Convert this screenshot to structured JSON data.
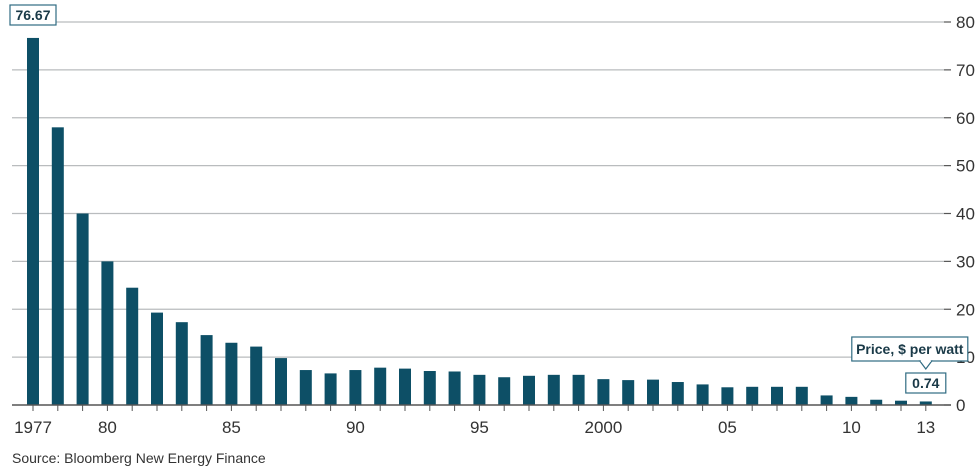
{
  "chart_data": {
    "type": "bar",
    "title": "",
    "x": [
      1977,
      1978,
      1979,
      1980,
      1981,
      1982,
      1983,
      1984,
      1985,
      1986,
      1987,
      1988,
      1989,
      1990,
      1991,
      1992,
      1993,
      1994,
      1995,
      1996,
      1997,
      1998,
      1999,
      2000,
      2001,
      2002,
      2003,
      2004,
      2005,
      2006,
      2007,
      2008,
      2009,
      2010,
      2011,
      2012,
      2013
    ],
    "values": [
      76.67,
      58,
      40,
      30,
      24.5,
      19.3,
      17.3,
      14.6,
      13,
      12.2,
      9.8,
      7.3,
      6.6,
      7.3,
      7.8,
      7.6,
      7.1,
      7,
      6.3,
      5.8,
      6.1,
      6.3,
      6.3,
      5.4,
      5.2,
      5.3,
      4.8,
      4.3,
      3.7,
      3.8,
      3.8,
      3.8,
      2,
      1.7,
      1.1,
      0.9,
      0.74
    ],
    "xtick_labels": [
      {
        "x": 1977,
        "label": "1977"
      },
      {
        "x": 1980,
        "label": "80"
      },
      {
        "x": 1985,
        "label": "85"
      },
      {
        "x": 1990,
        "label": "90"
      },
      {
        "x": 1995,
        "label": "95"
      },
      {
        "x": 2000,
        "label": "2000"
      },
      {
        "x": 2005,
        "label": "05"
      },
      {
        "x": 2010,
        "label": "10"
      },
      {
        "x": 2013,
        "label": "13"
      }
    ],
    "ytick_labels": [
      "0",
      "10",
      "20",
      "30",
      "40",
      "50",
      "60",
      "70",
      "80"
    ],
    "yticks": [
      0,
      10,
      20,
      30,
      40,
      50,
      60,
      70,
      80
    ],
    "ylim": [
      0,
      80
    ],
    "y_axis_side": "right",
    "grid": true,
    "bar_color": "#0d4f66",
    "grid_color": "#b9bcbe",
    "axis_color": "#555555",
    "callouts": [
      {
        "x": 1977,
        "label": "76.67"
      },
      {
        "x": 2013,
        "label": "0.74"
      }
    ],
    "series_label": "Price, $ per watt"
  },
  "source": "Source: Bloomberg New Energy Finance"
}
